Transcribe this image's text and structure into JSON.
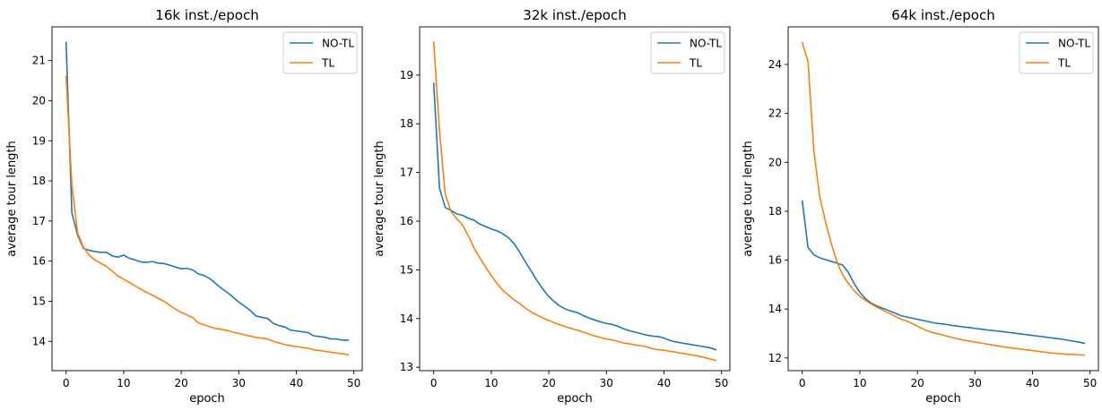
{
  "chart_data": [
    {
      "type": "line",
      "title": "16k inst./epoch",
      "xlabel": "epoch",
      "ylabel": "average tour length",
      "xlim": [
        -2.45,
        51.45
      ],
      "ylim": [
        13.27,
        21.84
      ],
      "xticks": [
        0,
        10,
        20,
        30,
        40,
        50
      ],
      "yticks": [
        14,
        15,
        16,
        17,
        18,
        19,
        20,
        21
      ],
      "legend_position": "top-right",
      "grid": false,
      "x": [
        0,
        1,
        2,
        3,
        4,
        5,
        6,
        7,
        8,
        9,
        10,
        11,
        12,
        13,
        14,
        15,
        16,
        17,
        18,
        19,
        20,
        21,
        22,
        23,
        24,
        25,
        26,
        27,
        28,
        29,
        30,
        31,
        32,
        33,
        34,
        35,
        36,
        37,
        38,
        39,
        40,
        41,
        42,
        43,
        44,
        45,
        46,
        47,
        48,
        49
      ],
      "series": [
        {
          "name": "NO-TL",
          "color": "#1f77b4",
          "values": [
            21.45,
            17.2,
            16.65,
            16.32,
            16.27,
            16.24,
            16.22,
            16.22,
            16.13,
            16.1,
            16.15,
            16.07,
            16.03,
            15.98,
            15.97,
            15.99,
            15.95,
            15.94,
            15.9,
            15.85,
            15.81,
            15.82,
            15.78,
            15.68,
            15.64,
            15.56,
            15.44,
            15.32,
            15.22,
            15.1,
            14.98,
            14.88,
            14.77,
            14.63,
            14.6,
            14.57,
            14.45,
            14.39,
            14.36,
            14.28,
            14.26,
            14.24,
            14.22,
            14.14,
            14.12,
            14.1,
            14.06,
            14.06,
            14.03,
            14.03
          ]
        },
        {
          "name": "TL",
          "color": "#ff7f0e",
          "values": [
            20.6,
            17.9,
            16.7,
            16.35,
            16.15,
            16.03,
            15.95,
            15.87,
            15.75,
            15.63,
            15.55,
            15.47,
            15.38,
            15.3,
            15.22,
            15.15,
            15.07,
            15.0,
            14.9,
            14.8,
            14.72,
            14.66,
            14.59,
            14.46,
            14.41,
            14.36,
            14.32,
            14.3,
            14.27,
            14.23,
            14.2,
            14.16,
            14.13,
            14.1,
            14.08,
            14.06,
            14.0,
            13.96,
            13.92,
            13.89,
            13.87,
            13.85,
            13.83,
            13.79,
            13.77,
            13.75,
            13.73,
            13.71,
            13.69,
            13.67
          ]
        }
      ]
    },
    {
      "type": "line",
      "title": "32k inst./epoch",
      "xlabel": "epoch",
      "ylabel": "average tour length",
      "xlim": [
        -2.45,
        51.45
      ],
      "ylim": [
        12.93,
        19.99
      ],
      "xticks": [
        0,
        10,
        20,
        30,
        40,
        50
      ],
      "yticks": [
        13,
        14,
        15,
        16,
        17,
        18,
        19
      ],
      "legend_position": "top-right",
      "grid": false,
      "x": [
        0,
        1,
        2,
        3,
        4,
        5,
        6,
        7,
        8,
        9,
        10,
        11,
        12,
        13,
        14,
        15,
        16,
        17,
        18,
        19,
        20,
        21,
        22,
        23,
        24,
        25,
        26,
        27,
        28,
        29,
        30,
        31,
        32,
        33,
        34,
        35,
        36,
        37,
        38,
        39,
        40,
        41,
        42,
        43,
        44,
        45,
        46,
        47,
        48,
        49
      ],
      "series": [
        {
          "name": "NO-TL",
          "color": "#1f77b4",
          "values": [
            18.83,
            16.68,
            16.28,
            16.22,
            16.15,
            16.12,
            16.06,
            16.02,
            15.94,
            15.89,
            15.84,
            15.8,
            15.74,
            15.66,
            15.53,
            15.35,
            15.15,
            14.96,
            14.77,
            14.6,
            14.45,
            14.34,
            14.25,
            14.19,
            14.15,
            14.12,
            14.06,
            14.01,
            13.97,
            13.93,
            13.9,
            13.88,
            13.84,
            13.79,
            13.75,
            13.72,
            13.69,
            13.66,
            13.64,
            13.63,
            13.6,
            13.55,
            13.52,
            13.5,
            13.48,
            13.46,
            13.44,
            13.42,
            13.4,
            13.36
          ]
        },
        {
          "name": "TL",
          "color": "#ff7f0e",
          "values": [
            19.68,
            17.85,
            16.55,
            16.2,
            16.05,
            15.92,
            15.7,
            15.45,
            15.25,
            15.06,
            14.88,
            14.72,
            14.58,
            14.48,
            14.38,
            14.3,
            14.21,
            14.13,
            14.07,
            14.01,
            13.96,
            13.91,
            13.87,
            13.83,
            13.79,
            13.76,
            13.72,
            13.68,
            13.64,
            13.61,
            13.58,
            13.56,
            13.53,
            13.5,
            13.48,
            13.46,
            13.44,
            13.42,
            13.38,
            13.36,
            13.35,
            13.33,
            13.31,
            13.29,
            13.27,
            13.25,
            13.23,
            13.2,
            13.17,
            13.14
          ]
        }
      ]
    },
    {
      "type": "line",
      "title": "64k inst./epoch",
      "xlabel": "epoch",
      "ylabel": "average tour length",
      "xlim": [
        -2.45,
        51.45
      ],
      "ylim": [
        11.48,
        25.54
      ],
      "xticks": [
        0,
        10,
        20,
        30,
        40,
        50
      ],
      "yticks": [
        12,
        14,
        16,
        18,
        20,
        22,
        24
      ],
      "legend_position": "top-right",
      "grid": false,
      "x": [
        0,
        1,
        2,
        3,
        4,
        5,
        6,
        7,
        8,
        9,
        10,
        11,
        12,
        13,
        14,
        15,
        16,
        17,
        18,
        19,
        20,
        21,
        22,
        23,
        24,
        25,
        26,
        27,
        28,
        29,
        30,
        31,
        32,
        33,
        34,
        35,
        36,
        37,
        38,
        39,
        40,
        41,
        42,
        43,
        44,
        45,
        46,
        47,
        48,
        49
      ],
      "series": [
        {
          "name": "NO-TL",
          "color": "#1f77b4",
          "values": [
            18.42,
            16.52,
            16.22,
            16.1,
            16.02,
            15.95,
            15.88,
            15.8,
            15.5,
            15.05,
            14.68,
            14.42,
            14.24,
            14.12,
            14.03,
            13.94,
            13.84,
            13.74,
            13.68,
            13.63,
            13.58,
            13.53,
            13.48,
            13.43,
            13.4,
            13.37,
            13.33,
            13.3,
            13.27,
            13.24,
            13.21,
            13.18,
            13.15,
            13.12,
            13.1,
            13.07,
            13.04,
            13.01,
            12.98,
            12.95,
            12.92,
            12.89,
            12.86,
            12.83,
            12.8,
            12.77,
            12.73,
            12.69,
            12.65,
            12.6
          ]
        },
        {
          "name": "TL",
          "color": "#ff7f0e",
          "values": [
            24.9,
            24.12,
            20.5,
            18.65,
            17.6,
            16.7,
            15.95,
            15.4,
            15.05,
            14.75,
            14.52,
            14.35,
            14.2,
            14.07,
            13.95,
            13.84,
            13.72,
            13.6,
            13.52,
            13.42,
            13.3,
            13.18,
            13.08,
            13.02,
            12.96,
            12.9,
            12.84,
            12.78,
            12.73,
            12.69,
            12.65,
            12.61,
            12.57,
            12.53,
            12.49,
            12.45,
            12.42,
            12.39,
            12.36,
            12.33,
            12.3,
            12.27,
            12.24,
            12.21,
            12.19,
            12.17,
            12.15,
            12.14,
            12.13,
            12.12
          ]
        }
      ]
    }
  ]
}
